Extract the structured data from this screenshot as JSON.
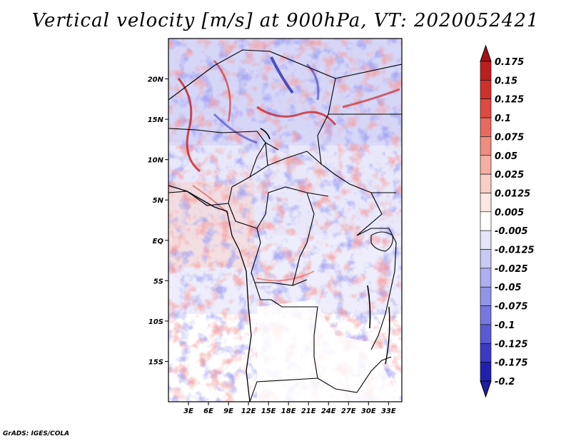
{
  "title": "Vertical velocity [m/s] at 900hPa, VT: 2020052421",
  "credit": "GrADS: IGES/COLA",
  "map": {
    "lon_range": [
      0,
      35
    ],
    "lat_range": [
      -20,
      25
    ],
    "lat_ticks": [
      {
        "value": 20,
        "label": "20N"
      },
      {
        "value": 15,
        "label": "15N"
      },
      {
        "value": 10,
        "label": "10N"
      },
      {
        "value": 5,
        "label": "5N"
      },
      {
        "value": 0,
        "label": "EQ"
      },
      {
        "value": -5,
        "label": "5S"
      },
      {
        "value": -10,
        "label": "10S"
      },
      {
        "value": -15,
        "label": "15S"
      }
    ],
    "lon_ticks": [
      {
        "value": 3,
        "label": "3E"
      },
      {
        "value": 6,
        "label": "6E"
      },
      {
        "value": 9,
        "label": "9E"
      },
      {
        "value": 12,
        "label": "12E"
      },
      {
        "value": 15,
        "label": "15E"
      },
      {
        "value": 18,
        "label": "18E"
      },
      {
        "value": 21,
        "label": "21E"
      },
      {
        "value": 24,
        "label": "24E"
      },
      {
        "value": 27,
        "label": "27E"
      },
      {
        "value": 30,
        "label": "30E"
      },
      {
        "value": 33,
        "label": "33E"
      }
    ]
  },
  "colorbar": {
    "levels": [
      {
        "label": "0.175",
        "color": "#a50f15"
      },
      {
        "label": "0.15",
        "color": "#bd1f1f"
      },
      {
        "label": "0.125",
        "color": "#d0302b"
      },
      {
        "label": "0.1",
        "color": "#de4a41"
      },
      {
        "label": "0.075",
        "color": "#e86a5f"
      },
      {
        "label": "0.05",
        "color": "#f08c80"
      },
      {
        "label": "0.025",
        "color": "#f6aea3"
      },
      {
        "label": "0.0125",
        "color": "#fbcdc5"
      },
      {
        "label": "0.005",
        "color": "#fde7e2"
      },
      {
        "label": "-0.005",
        "color": "#ffffff"
      },
      {
        "label": "-0.0125",
        "color": "#e4e4fb"
      },
      {
        "label": "-0.025",
        "color": "#c9c9f6"
      },
      {
        "label": "-0.05",
        "color": "#aeaef1"
      },
      {
        "label": "-0.075",
        "color": "#9393ea"
      },
      {
        "label": "-0.1",
        "color": "#7777e0"
      },
      {
        "label": "-0.125",
        "color": "#5a5ad4"
      },
      {
        "label": "-0.175",
        "color": "#3a3ac4"
      },
      {
        "label": "-0.2",
        "color": "#2020b0"
      }
    ],
    "top_cap_color": "#a50f15",
    "bottom_cap_color": "#1e1ea0"
  }
}
